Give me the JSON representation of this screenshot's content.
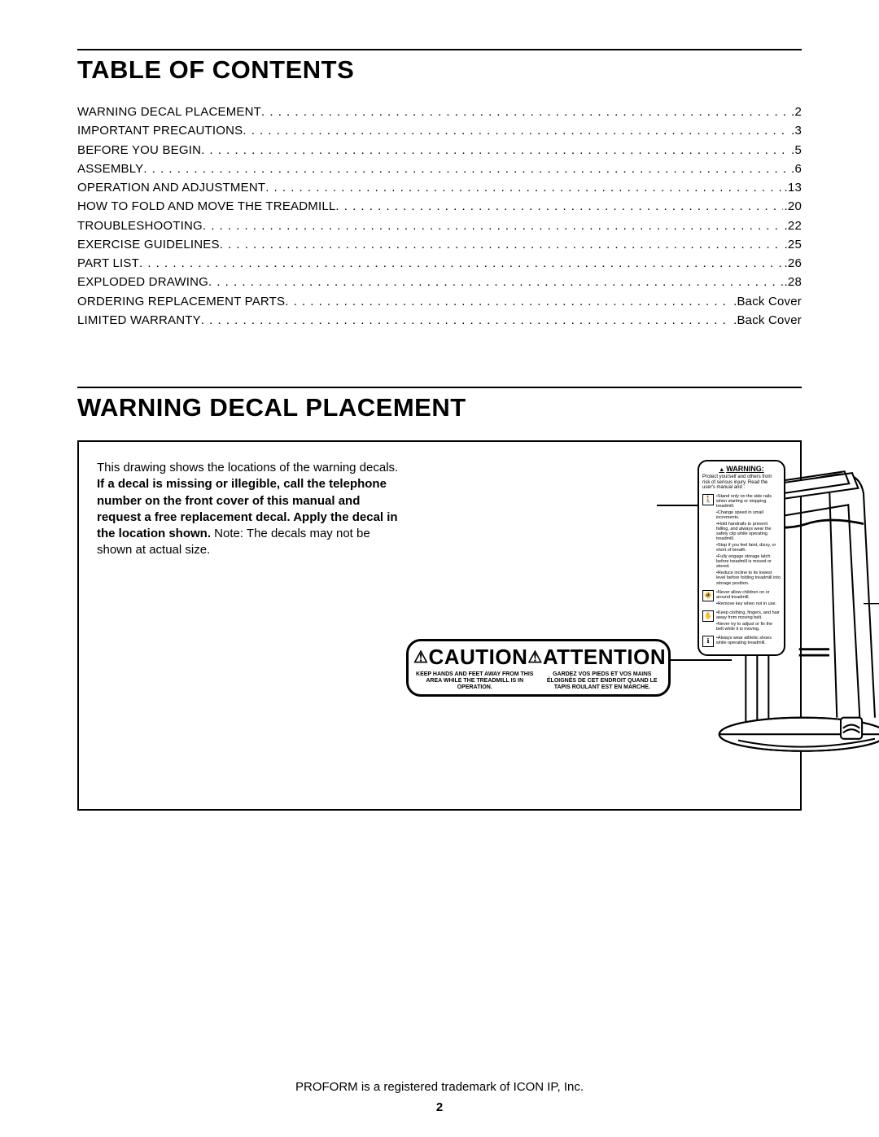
{
  "colors": {
    "text": "#000000",
    "background": "#ffffff",
    "rule": "#000000"
  },
  "sections": {
    "toc_title": "TABLE OF CONTENTS",
    "wdp_title": "WARNING DECAL PLACEMENT"
  },
  "toc": [
    {
      "label": "WARNING DECAL PLACEMENT",
      "page": "2"
    },
    {
      "label": "IMPORTANT PRECAUTIONS",
      "page": "3"
    },
    {
      "label": "BEFORE YOU BEGIN",
      "page": "5"
    },
    {
      "label": "ASSEMBLY",
      "page": "6"
    },
    {
      "label": "OPERATION AND ADJUSTMENT",
      "page": "13"
    },
    {
      "label": "HOW TO FOLD AND MOVE THE TREADMILL",
      "page": "20"
    },
    {
      "label": "TROUBLESHOOTING",
      "page": "22"
    },
    {
      "label": "EXERCISE GUIDELINES",
      "page": "25"
    },
    {
      "label": "PART LIST",
      "page": "26"
    },
    {
      "label": "EXPLODED DRAWING",
      "page": "28"
    },
    {
      "label": "ORDERING REPLACEMENT PARTS",
      "page": "Back Cover"
    },
    {
      "label": "LIMITED WARRANTY",
      "page": "Back Cover"
    }
  ],
  "figure": {
    "intro_plain_1": "This drawing shows the locations of the warning decals. ",
    "intro_bold": "If a decal is missing or illegible, call the telephone number on the front cover of this manual and request a free replacement decal. Apply the decal in the location shown.",
    "intro_plain_2": " Note: The decals may not be shown at actual size.",
    "caution": {
      "head_left": "CAUTION",
      "head_right": "ATTENTION",
      "body_en": "KEEP HANDS AND FEET AWAY FROM THIS AREA WHILE THE TREADMILL IS IN OPERATION.",
      "body_fr": "GARDEZ VOS PIEDS ET VOS MAINS ÉLOIGNÉS DE CET ENDROIT QUAND LE TAPIS ROULANT EST EN MARCHE."
    },
    "warning_label": {
      "title": "WARNING:",
      "intro": "Protect yourself and others from risk of serious injury. Read the user's manual and :",
      "groups": [
        {
          "icon": "person",
          "lines": [
            "•Stand only on the side rails when starting or stopping treadmill.",
            "•Change speed in small increments.",
            "•Hold handrails to prevent falling, and always wear the safety clip while operating treadmill.",
            "•Stop if you feel faint, dizzy, or short of breath.",
            "•Fully engage storage latch before treadmill is moved or stored.",
            "•Reduce incline to its lowest level before folding treadmill into storage position."
          ]
        },
        {
          "icon": "child",
          "lines": [
            "•Never allow children on or around treadmill.",
            "•Remove key when not in use."
          ]
        },
        {
          "icon": "hand",
          "lines": [
            "•Keep clothing, fingers, and hair away from moving belt.",
            "•Never try to adjust or fix the belt while it is moving."
          ]
        },
        {
          "icon": "info",
          "lines": [
            "•Always wear athletic shoes while operating treadmill."
          ]
        }
      ]
    }
  },
  "footer": {
    "trademark": "PROFORM is a registered trademark of ICON IP, Inc.",
    "page_number": "2"
  }
}
